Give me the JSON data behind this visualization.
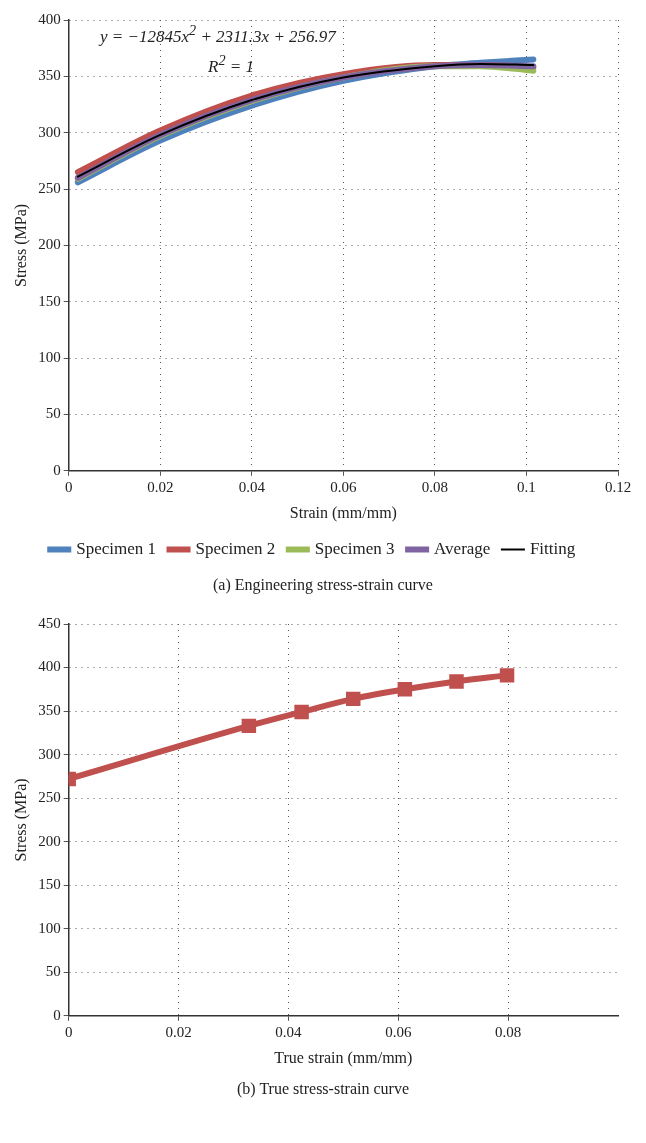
{
  "chart_data": [
    {
      "type": "line",
      "title": "(a) Engineering stress-strain curve",
      "xlabel": "Strain (mm/mm)",
      "ylabel": "Stress (MPa)",
      "annotations": [
        "y = −12845x$^{2}$ + 2311.3x + 256.97",
        "R$^{2}$ = 1"
      ],
      "x": [
        0.002,
        0.02,
        0.04,
        0.06,
        0.08,
        0.09,
        0.1015
      ],
      "series": [
        {
          "name": "Specimen 1",
          "color": "#4f81bd",
          "values": [
            256,
            293,
            324,
            346,
            359,
            362,
            365
          ]
        },
        {
          "name": "Specimen 2",
          "color": "#c0504d",
          "values": [
            265,
            302,
            333,
            352,
            360,
            360,
            358
          ]
        },
        {
          "name": "Specimen 3",
          "color": "#9bbb59",
          "values": [
            259,
            297,
            328,
            349,
            359,
            359,
            355
          ]
        },
        {
          "name": "Average",
          "color": "#8064a2",
          "values": [
            260,
            298,
            329,
            349,
            359,
            360,
            359
          ]
        },
        {
          "name": "Fitting",
          "color": "#000000",
          "x": [
            0.002,
            0.02,
            0.04,
            0.06,
            0.08,
            0.09,
            0.1015
          ],
          "values": [
            261,
            298,
            329,
            349,
            359,
            361,
            360
          ]
        }
      ],
      "xlim": [
        0,
        0.12
      ],
      "xticks": [
        0,
        0.02,
        0.04,
        0.06,
        0.08,
        0.1,
        0.12
      ],
      "ylim": [
        0,
        400
      ],
      "yticks": [
        0,
        50,
        100,
        150,
        200,
        250,
        300,
        350,
        400
      ],
      "grid": true,
      "legend": "bottom",
      "marker": "none"
    },
    {
      "type": "line",
      "title": "(b) True stress-strain curve",
      "xlabel": "True strain (mm/mm)",
      "ylabel": "Stress (MPa)",
      "x": [
        0,
        0.0328,
        0.0424,
        0.0518,
        0.0612,
        0.0706,
        0.0798
      ],
      "series": [
        {
          "color": "#c0504d",
          "values": [
            272,
            333,
            349,
            364,
            375,
            384,
            391
          ]
        }
      ],
      "xlim": [
        0,
        0.1
      ],
      "xticks": [
        0,
        0.02,
        0.04,
        0.06,
        0.08
      ],
      "ylim": [
        0,
        450
      ],
      "yticks": [
        0,
        50,
        100,
        150,
        200,
        250,
        300,
        350,
        400,
        450
      ],
      "grid": true,
      "marker": "square"
    }
  ]
}
